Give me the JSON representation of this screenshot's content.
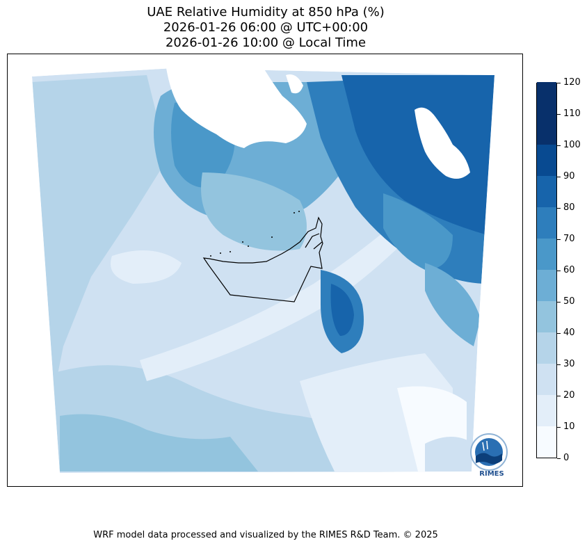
{
  "title_lines": [
    "UAE Relative Humidity at 850 hPa (%)",
    "2026-01-26 06:00 @ UTC+00:00",
    "2026-01-26 10:00 @ Local Time"
  ],
  "colorbar": {
    "ticks": [
      "0",
      "10",
      "20",
      "30",
      "40",
      "50",
      "60",
      "70",
      "80",
      "90",
      "100",
      "110",
      "120"
    ],
    "colors": [
      "#f7fbff",
      "#e3eef9",
      "#cfe1f2",
      "#b5d4e9",
      "#93c4de",
      "#6daed5",
      "#4a98c9",
      "#2e7ebc",
      "#1764ab",
      "#084a91",
      "#08306b",
      "#08306b"
    ]
  },
  "logo_text": "RIMES",
  "footer": "WRF model data processed and visualized by the RIMES R&D Team. © 2025"
}
